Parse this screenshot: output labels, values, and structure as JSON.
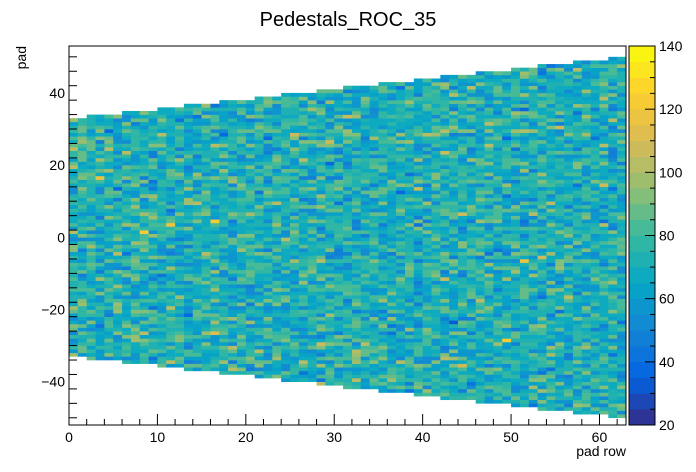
{
  "chart_data": {
    "type": "heatmap",
    "title": "Pedestals_ROC_35",
    "xlabel": "pad row",
    "ylabel": "pad",
    "xlim": [
      0,
      63
    ],
    "ylim": [
      -52,
      53
    ],
    "x_ticks": [
      0,
      10,
      20,
      30,
      40,
      50,
      60
    ],
    "y_ticks": [
      -40,
      -20,
      0,
      20,
      40
    ],
    "z_range": [
      20,
      140
    ],
    "z_ticks": [
      20,
      40,
      60,
      80,
      100,
      120,
      140
    ],
    "colorbar_levels": 24,
    "mean_value": 72,
    "value_spread": 12,
    "pads_first_row": 33,
    "pads_last_row": 50,
    "n_rows": 63,
    "palette": [
      "#352a87",
      "#0363e1",
      "#1485d4",
      "#06a7c6",
      "#38b99e",
      "#92bf73",
      "#d9ba56",
      "#fcce2e",
      "#f9fb0e"
    ],
    "grid": false,
    "legend": "none"
  }
}
